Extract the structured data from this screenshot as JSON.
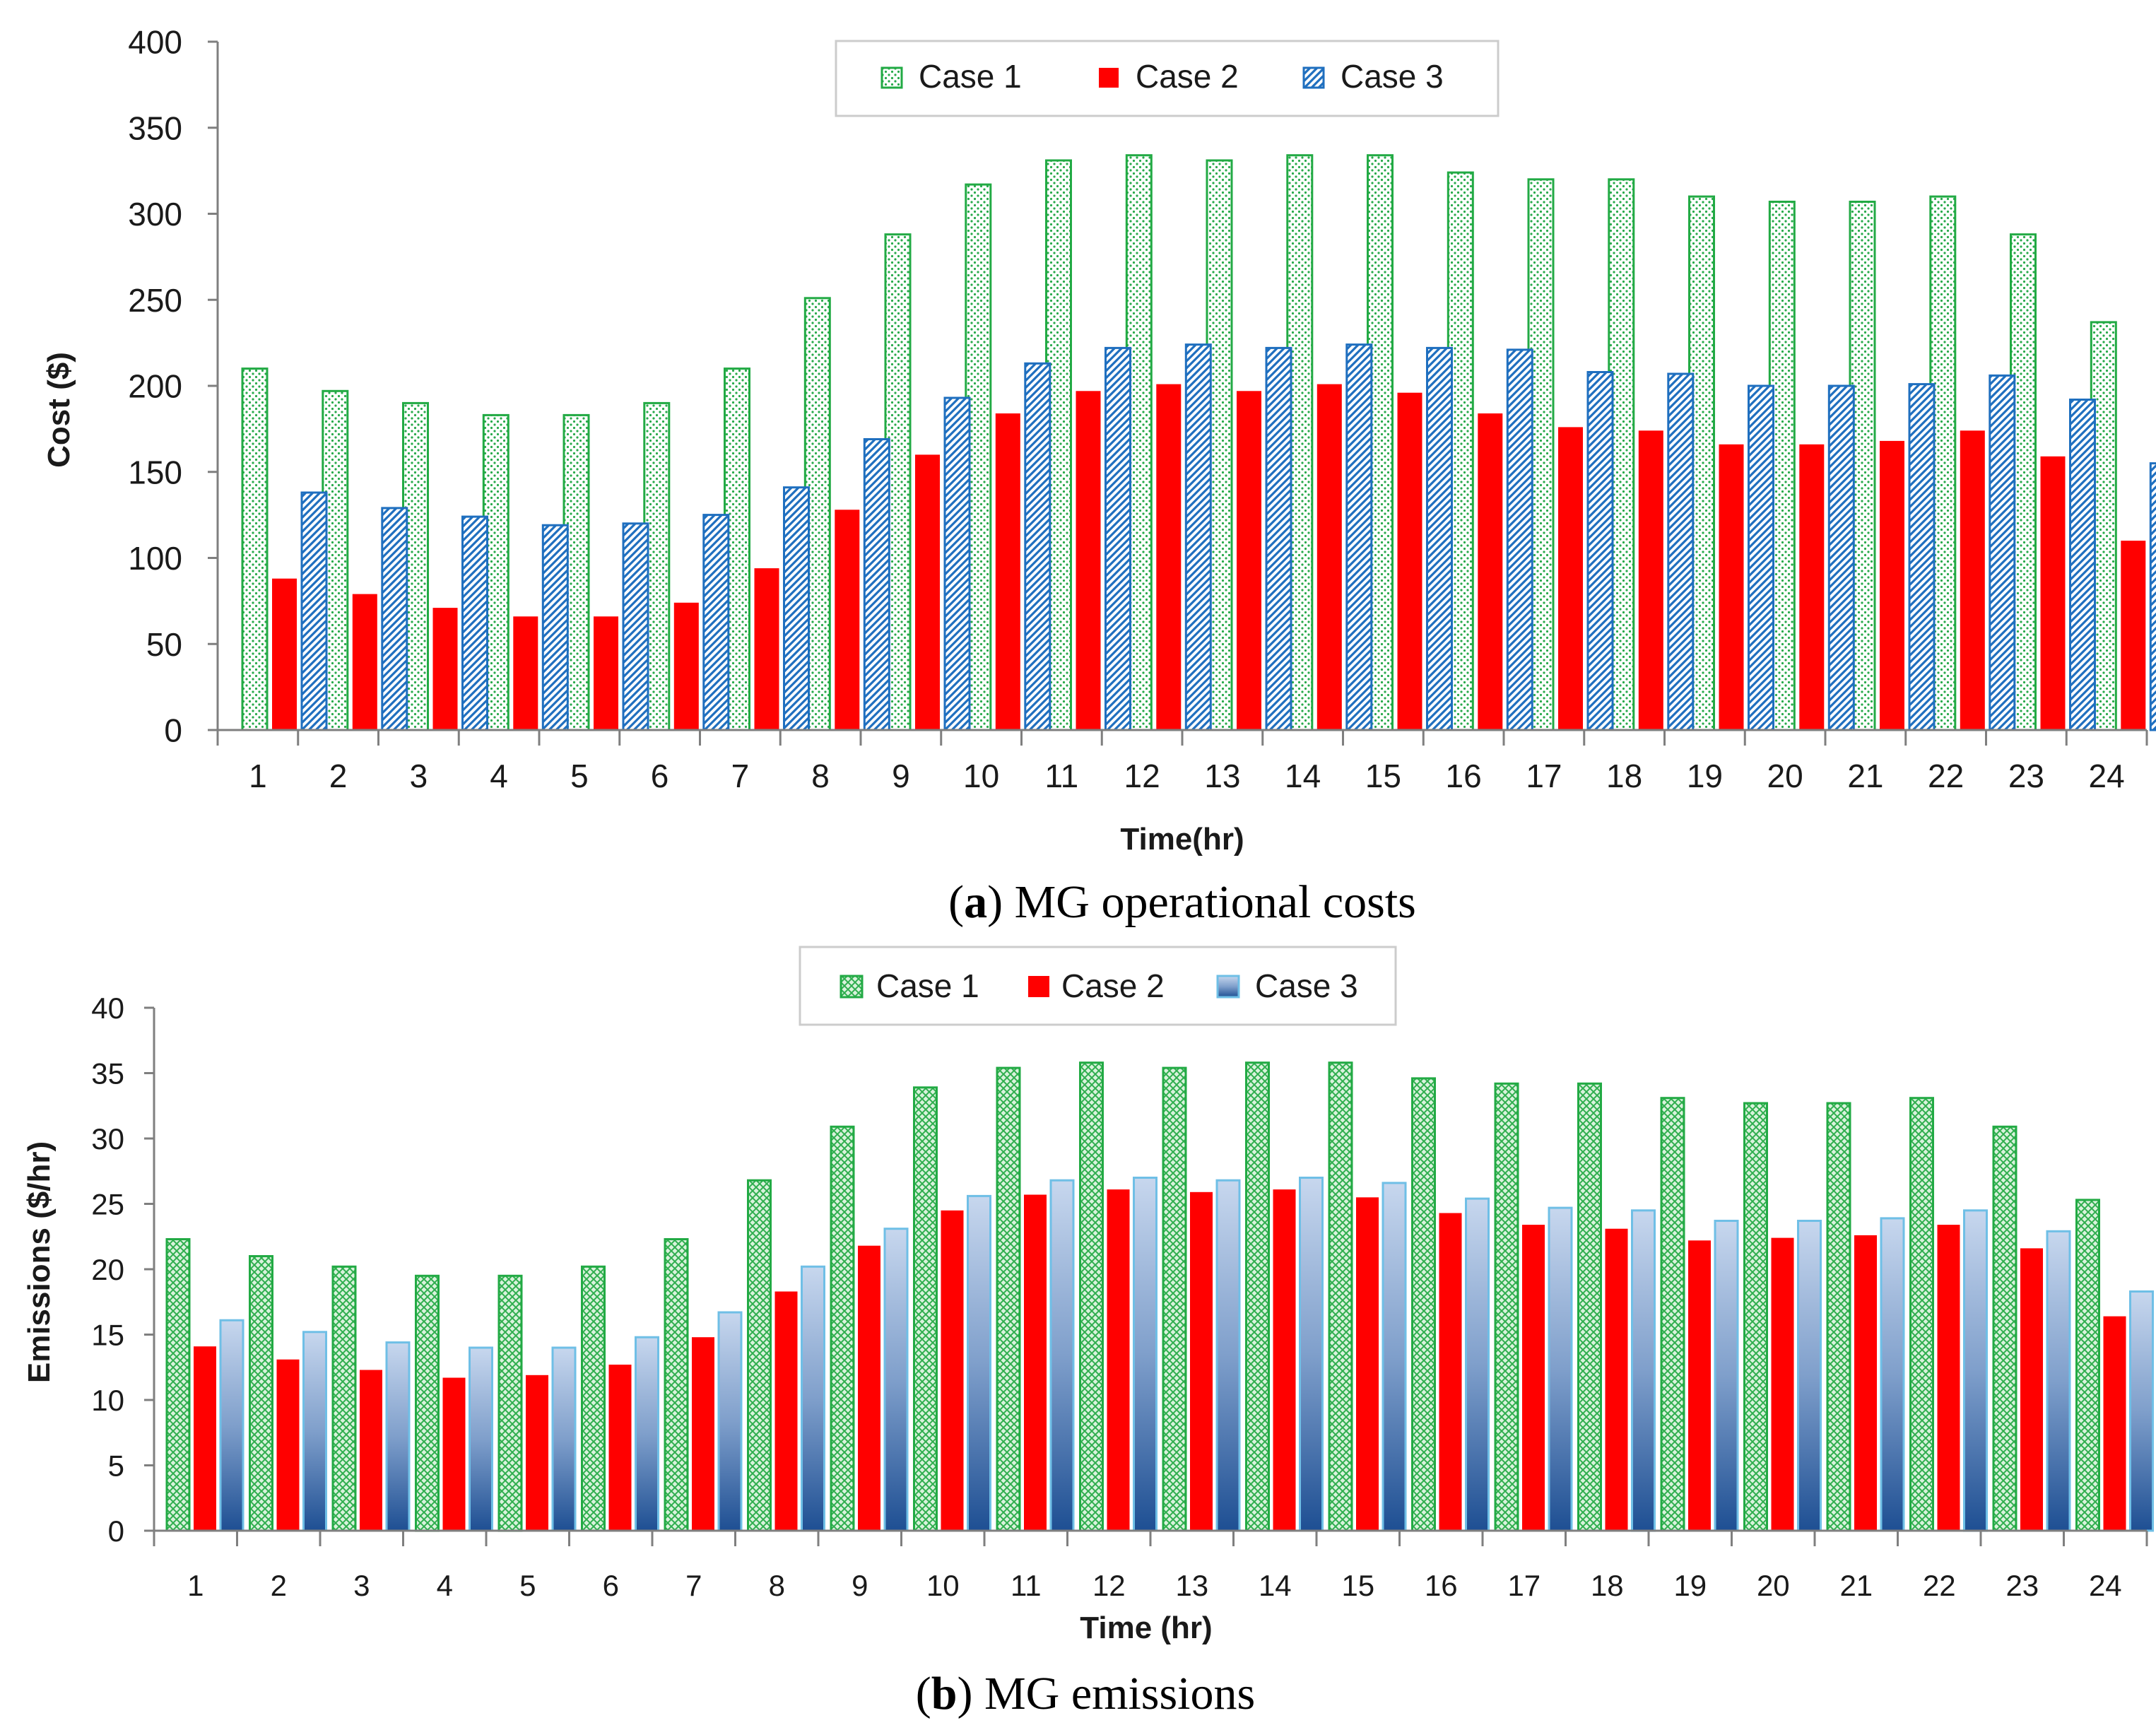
{
  "chart_data": [
    {
      "type": "bar",
      "title": "",
      "caption": {
        "letter": "a",
        "text": "MG operational costs"
      },
      "xlabel": "Time(hr)",
      "ylabel": "Cost ($)",
      "ylim": [
        0,
        400
      ],
      "yticks": [
        "0",
        "50",
        "100",
        "150",
        "200",
        "250",
        "300",
        "350",
        "400"
      ],
      "categories": [
        "1",
        "2",
        "3",
        "4",
        "5",
        "6",
        "7",
        "8",
        "9",
        "10",
        "11",
        "12",
        "13",
        "14",
        "15",
        "16",
        "17",
        "18",
        "19",
        "20",
        "21",
        "22",
        "23",
        "24"
      ],
      "legend_position": "top-center",
      "grid": false,
      "series": [
        {
          "name": "Case 1",
          "color": "#22aa44",
          "pattern": "dotted",
          "values": [
            210,
            197,
            190,
            183,
            183,
            190,
            210,
            251,
            288,
            317,
            331,
            334,
            331,
            334,
            334,
            324,
            320,
            320,
            310,
            307,
            307,
            310,
            288,
            237
          ]
        },
        {
          "name": "Case 2",
          "color": "#ff0000",
          "pattern": "solid",
          "values": [
            88,
            79,
            71,
            66,
            66,
            74,
            94,
            128,
            160,
            184,
            197,
            201,
            197,
            201,
            196,
            184,
            176,
            174,
            166,
            166,
            168,
            174,
            159,
            110
          ]
        },
        {
          "name": "Case 3",
          "color": "#1f6fbf",
          "pattern": "hatched",
          "values": [
            138,
            129,
            124,
            119,
            120,
            125,
            141,
            169,
            193,
            213,
            222,
            224,
            222,
            224,
            222,
            221,
            208,
            207,
            200,
            200,
            201,
            206,
            192,
            155
          ]
        }
      ]
    },
    {
      "type": "bar",
      "title": "",
      "caption": {
        "letter": "b",
        "text": "MG emissions"
      },
      "xlabel": "Time (hr)",
      "ylabel": "Emissions ($/hr)",
      "ylim": [
        0,
        40
      ],
      "yticks": [
        "0",
        "5",
        "10",
        "15",
        "20",
        "25",
        "30",
        "35",
        "40"
      ],
      "categories": [
        "1",
        "2",
        "3",
        "4",
        "5",
        "6",
        "7",
        "8",
        "9",
        "10",
        "11",
        "12",
        "13",
        "14",
        "15",
        "16",
        "17",
        "18",
        "19",
        "20",
        "21",
        "22",
        "23",
        "24"
      ],
      "legend_position": "top-center",
      "grid": false,
      "series": [
        {
          "name": "Case 1",
          "color": "#22aa44",
          "pattern": "crosshatch",
          "values": [
            22.3,
            21.0,
            20.2,
            19.5,
            19.5,
            20.2,
            22.3,
            26.8,
            30.9,
            33.9,
            35.4,
            35.8,
            35.4,
            35.8,
            35.8,
            34.6,
            34.2,
            34.2,
            33.1,
            32.7,
            32.7,
            33.1,
            30.9,
            25.3
          ]
        },
        {
          "name": "Case 2",
          "color": "#ff0000",
          "pattern": "solid",
          "values": [
            14.1,
            13.1,
            12.3,
            11.7,
            11.9,
            12.7,
            14.8,
            18.3,
            21.8,
            24.5,
            25.7,
            26.1,
            25.9,
            26.1,
            25.5,
            24.3,
            23.4,
            23.1,
            22.2,
            22.4,
            22.6,
            23.4,
            21.6,
            16.4
          ]
        },
        {
          "name": "Case 3",
          "color": "#5b9bd5",
          "pattern": "gradient",
          "values": [
            16.1,
            15.2,
            14.4,
            14.0,
            14.0,
            14.8,
            16.7,
            20.2,
            23.1,
            25.6,
            26.8,
            27.0,
            26.8,
            27.0,
            26.6,
            25.4,
            24.7,
            24.5,
            23.7,
            23.7,
            23.9,
            24.5,
            22.9,
            18.3
          ]
        }
      ]
    }
  ]
}
